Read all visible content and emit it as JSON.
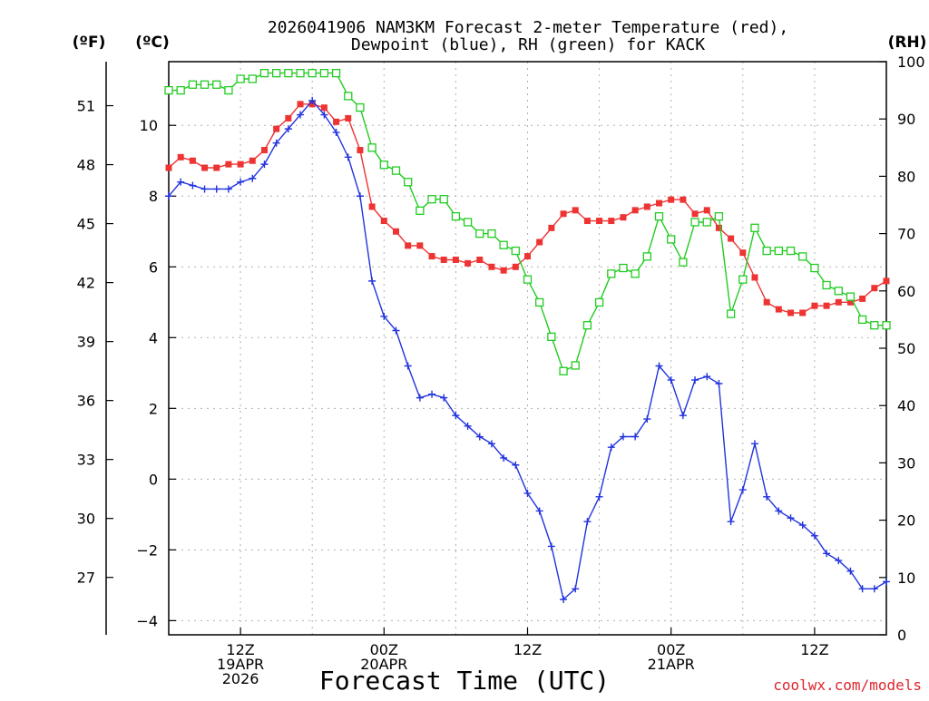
{
  "chart_data": {
    "type": "line",
    "title_line1": "2026041906 NAM3KM Forecast 2-meter Temperature (red),",
    "title_line2": "Dewpoint (blue), RH (green) for KACK",
    "xlabel": "Forecast Time (UTC)",
    "credit": "coolwx.com/models",
    "units": {
      "fahrenheit": "(ºF)",
      "celsius": "(ºC)",
      "rh": "(RH)"
    },
    "x_unit": "forecast hour since 2026041906",
    "xlim": [
      0,
      60
    ],
    "celsius_axis": {
      "ylim": [
        -4.4,
        11.8
      ],
      "ticks": [
        10,
        8,
        6,
        4,
        2,
        0,
        -2,
        -4
      ]
    },
    "fahrenheit_axis": {
      "ticks": [
        51,
        48,
        45,
        42,
        39,
        36,
        33,
        30,
        27
      ]
    },
    "rh_axis": {
      "ylim": [
        0,
        100
      ],
      "ticks": [
        100,
        90,
        80,
        70,
        60,
        50,
        40,
        30,
        20,
        10,
        0
      ]
    },
    "x_ticks": [
      {
        "x": 6,
        "lines": [
          "12Z",
          "19APR",
          "2026"
        ]
      },
      {
        "x": 18,
        "lines": [
          "00Z",
          "20APR"
        ]
      },
      {
        "x": 30,
        "lines": [
          "12Z"
        ]
      },
      {
        "x": 42,
        "lines": [
          "00Z",
          "21APR"
        ]
      },
      {
        "x": 54,
        "lines": [
          "12Z"
        ]
      }
    ],
    "x_grid": [
      6,
      12,
      18,
      24,
      30,
      36,
      42,
      48,
      54
    ],
    "y_grid": [
      10,
      8,
      6,
      4,
      2,
      0,
      -2,
      -4
    ],
    "series": [
      {
        "name": "Temperature",
        "color": "#ee3333",
        "axis": "celsius",
        "marker": "filled-square",
        "x": [
          0,
          1,
          2,
          3,
          4,
          5,
          6,
          7,
          8,
          9,
          10,
          11,
          12,
          13,
          14,
          15,
          16,
          17,
          18,
          19,
          20,
          21,
          22,
          23,
          24,
          25,
          26,
          27,
          28,
          29,
          30,
          31,
          32,
          33,
          34,
          35,
          36,
          37,
          38,
          39,
          40,
          41,
          42,
          43,
          44,
          45,
          46,
          47,
          48,
          49,
          50,
          51,
          52,
          53,
          54,
          55,
          56,
          57,
          58,
          59,
          60
        ],
        "values": [
          8.8,
          9.1,
          9.0,
          8.8,
          8.8,
          8.9,
          8.9,
          9.0,
          9.3,
          9.9,
          10.2,
          10.6,
          10.6,
          10.5,
          10.1,
          10.2,
          9.3,
          7.7,
          7.3,
          7.0,
          6.6,
          6.6,
          6.3,
          6.2,
          6.2,
          6.1,
          6.2,
          6.0,
          5.9,
          6.0,
          6.3,
          6.7,
          7.1,
          7.5,
          7.6,
          7.3,
          7.3,
          7.3,
          7.4,
          7.6,
          7.7,
          7.8,
          7.9,
          7.9,
          7.5,
          7.6,
          7.1,
          6.8,
          6.4,
          5.7,
          5.0,
          4.8,
          4.7,
          4.7,
          4.9,
          4.9,
          5.0,
          5.0,
          5.1,
          5.4,
          5.6
        ]
      },
      {
        "name": "Dewpoint",
        "color": "#2233dd",
        "axis": "celsius",
        "marker": "plus",
        "x": [
          0,
          1,
          2,
          3,
          4,
          5,
          6,
          7,
          8,
          9,
          10,
          11,
          12,
          13,
          14,
          15,
          16,
          17,
          18,
          19,
          20,
          21,
          22,
          23,
          24,
          25,
          26,
          27,
          28,
          29,
          30,
          31,
          32,
          33,
          34,
          35,
          36,
          37,
          38,
          39,
          40,
          41,
          42,
          43,
          44,
          45,
          46,
          47,
          48,
          49,
          50,
          51,
          52,
          53,
          54,
          55,
          56,
          57,
          58,
          59,
          60
        ],
        "values": [
          8.0,
          8.4,
          8.3,
          8.2,
          8.2,
          8.2,
          8.4,
          8.5,
          8.9,
          9.5,
          9.9,
          10.3,
          10.7,
          10.3,
          9.8,
          9.1,
          8.0,
          5.6,
          4.6,
          4.2,
          3.2,
          2.3,
          2.4,
          2.3,
          1.8,
          1.5,
          1.2,
          1.0,
          0.6,
          0.4,
          -0.4,
          -0.9,
          -1.9,
          -3.4,
          -3.1,
          -1.2,
          -0.5,
          0.9,
          1.2,
          1.2,
          1.7,
          3.2,
          2.8,
          1.8,
          2.8,
          2.9,
          2.7,
          -1.2,
          -0.3,
          1.0,
          -0.5,
          -0.9,
          -1.1,
          -1.3,
          -1.6,
          -2.1,
          -2.3,
          -2.6,
          -3.1,
          -3.1,
          -2.9
        ]
      },
      {
        "name": "RH",
        "color": "#22cc22",
        "axis": "rh",
        "marker": "open-square",
        "x": [
          0,
          1,
          2,
          3,
          4,
          5,
          6,
          7,
          8,
          9,
          10,
          11,
          12,
          13,
          14,
          15,
          16,
          17,
          18,
          19,
          20,
          21,
          22,
          23,
          24,
          25,
          26,
          27,
          28,
          29,
          30,
          31,
          32,
          33,
          34,
          35,
          36,
          37,
          38,
          39,
          40,
          41,
          42,
          43,
          44,
          45,
          46,
          47,
          48,
          49,
          50,
          51,
          52,
          53,
          54,
          55,
          56,
          57,
          58,
          59,
          60
        ],
        "values": [
          95,
          95,
          96,
          96,
          96,
          95,
          97,
          97,
          98,
          98,
          98,
          98,
          98,
          98,
          98,
          94,
          92,
          85,
          82,
          81,
          79,
          74,
          76,
          76,
          73,
          72,
          70,
          70,
          68,
          67,
          62,
          58,
          52,
          46,
          47,
          54,
          58,
          63,
          64,
          63,
          66,
          73,
          69,
          65,
          72,
          72,
          73,
          56,
          62,
          71,
          67,
          67,
          67,
          66,
          64,
          61,
          60,
          59,
          55,
          54,
          54
        ]
      }
    ]
  }
}
